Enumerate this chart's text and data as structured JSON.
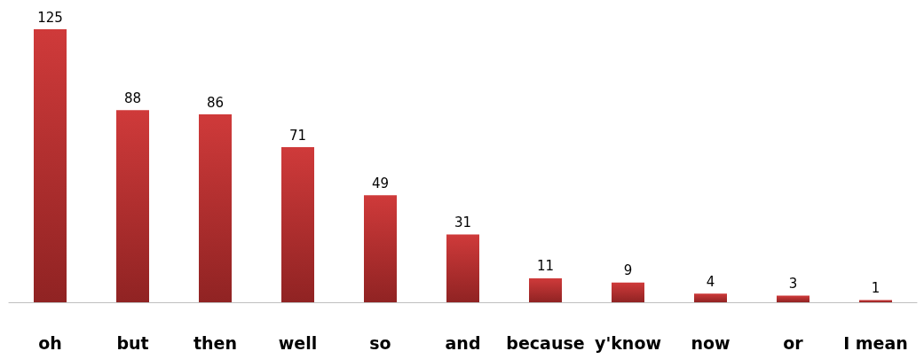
{
  "chart_data": {
    "type": "bar",
    "categories": [
      "oh",
      "but",
      "then",
      "well",
      "so",
      "and",
      "because",
      "y'know",
      "now",
      "or",
      "I mean"
    ],
    "values": [
      125,
      88,
      86,
      71,
      49,
      31,
      11,
      9,
      4,
      3,
      1
    ],
    "color": "#cf3a3a",
    "data_labels": true
  }
}
